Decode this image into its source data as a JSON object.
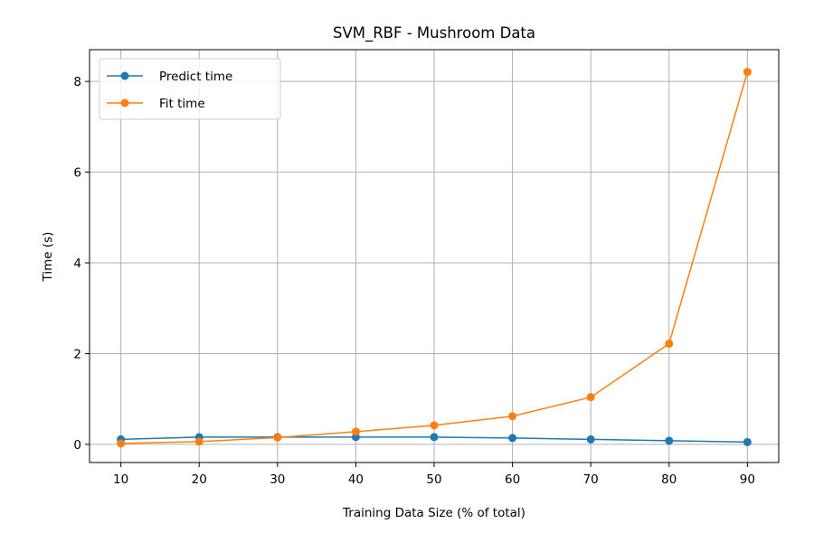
{
  "chart_data": {
    "type": "line",
    "title": "SVM_RBF - Mushroom Data",
    "xlabel": "Training Data Size (% of total)",
    "ylabel": "Time (s)",
    "x": [
      10,
      20,
      30,
      40,
      50,
      60,
      70,
      80,
      90
    ],
    "xlim": [
      6,
      94
    ],
    "ylim": [
      -0.4,
      8.7
    ],
    "xticks": [
      10,
      20,
      30,
      40,
      50,
      60,
      70,
      80,
      90
    ],
    "yticks": [
      0,
      2,
      4,
      6,
      8
    ],
    "grid": true,
    "legend_position": "upper-left",
    "series": [
      {
        "name": "Predict time",
        "color": "#1f77b4",
        "values": [
          0.11,
          0.16,
          0.16,
          0.16,
          0.16,
          0.14,
          0.11,
          0.08,
          0.05
        ]
      },
      {
        "name": "Fit time",
        "color": "#ff7f0e",
        "values": [
          0.02,
          0.06,
          0.15,
          0.28,
          0.42,
          0.62,
          1.04,
          2.22,
          8.21
        ]
      }
    ]
  }
}
